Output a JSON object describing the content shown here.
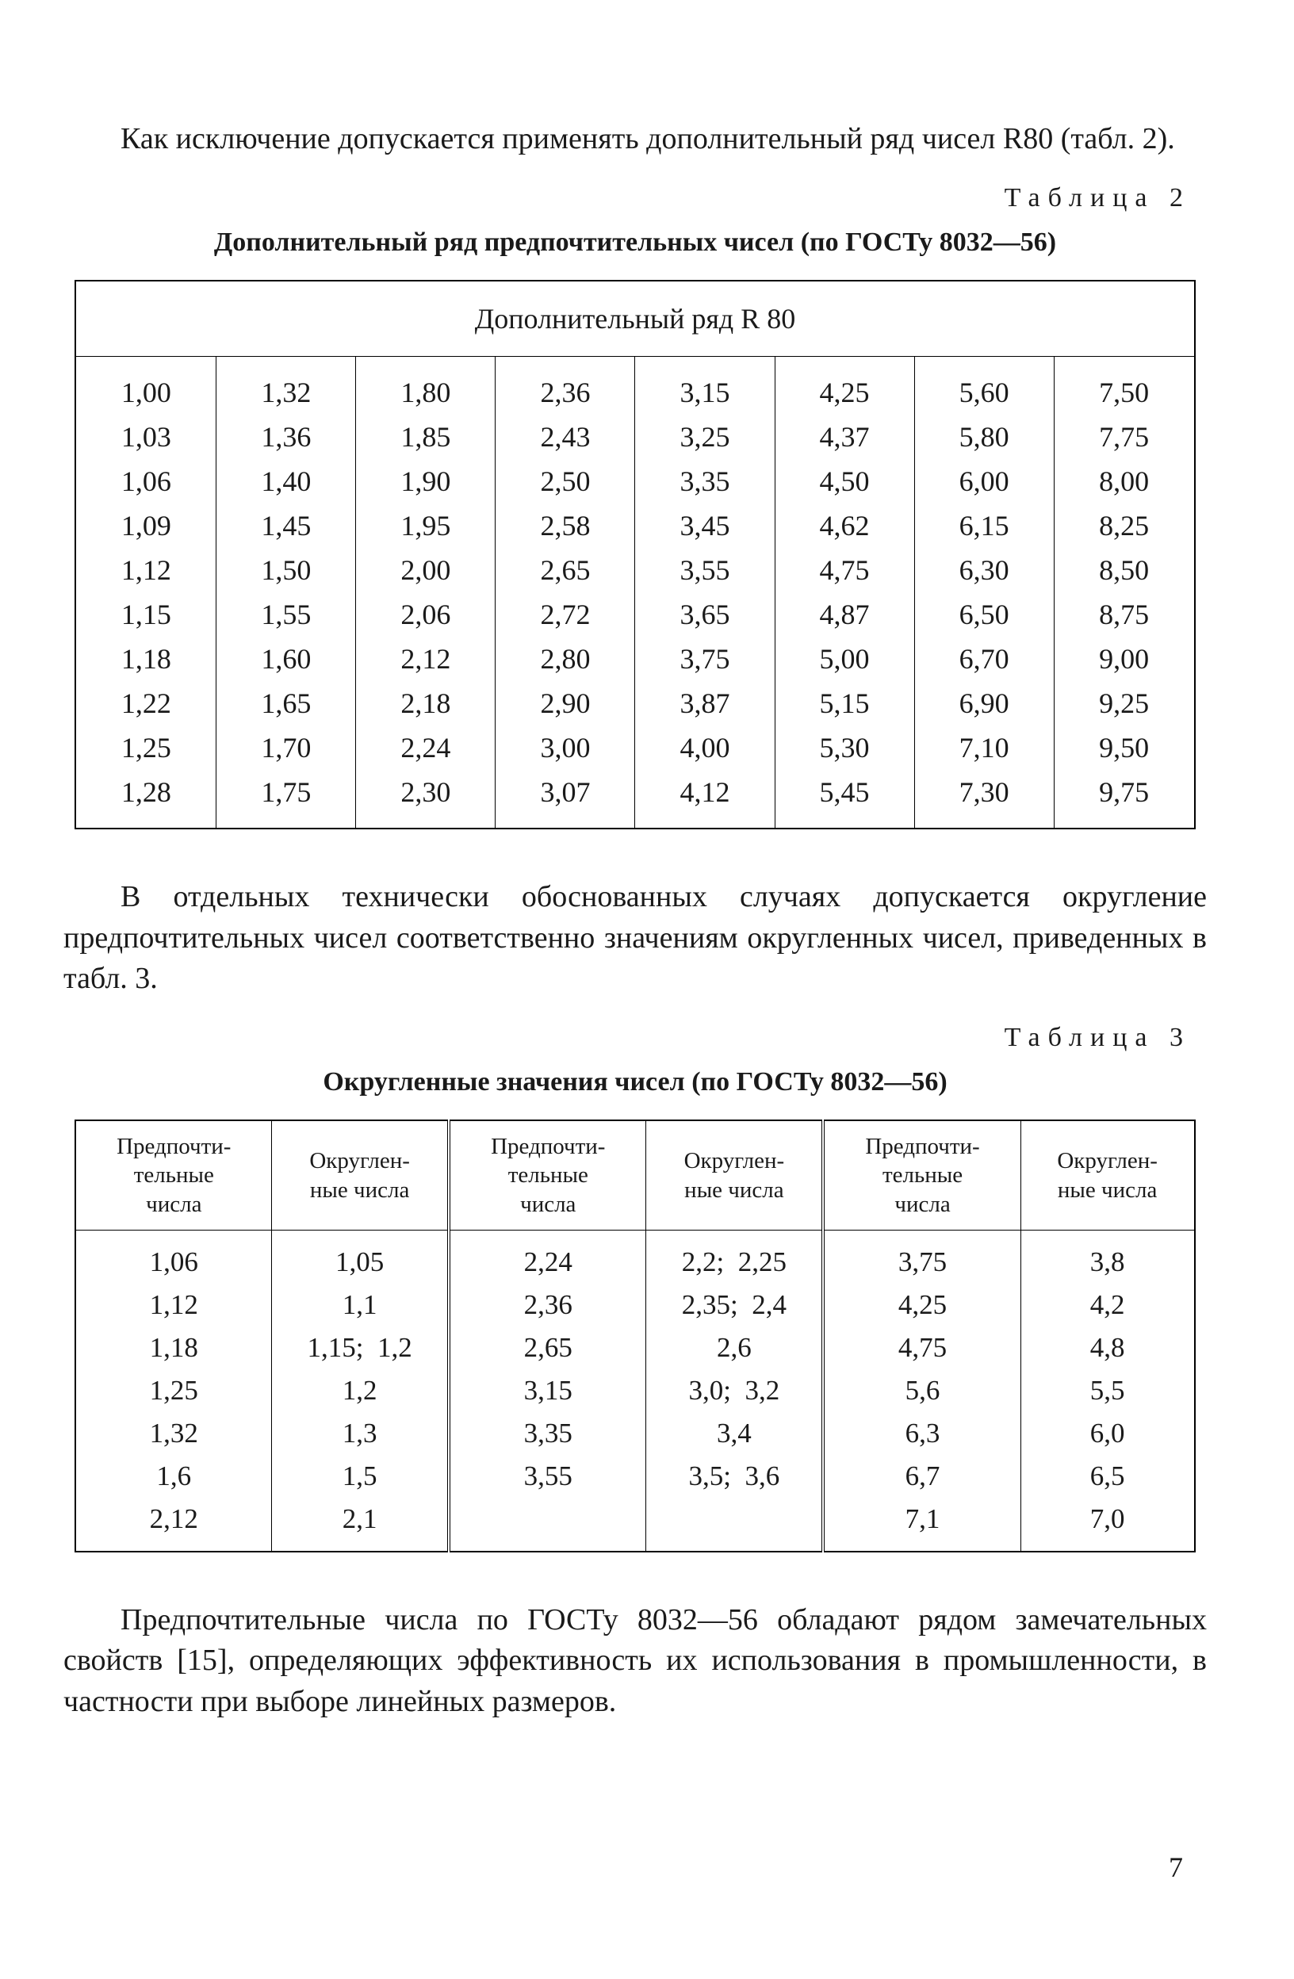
{
  "para1": "Как исключение допускается применять дополнительный ряд чисел R80 (табл. 2).",
  "table2": {
    "label": "Таблица 2",
    "caption": "Дополнительный ряд предпочтительных чисел (по ГОСТу 8032—56)",
    "header": "Дополнительный ряд R 80",
    "rows": [
      [
        "1,00",
        "1,32",
        "1,80",
        "2,36",
        "3,15",
        "4,25",
        "5,60",
        "7,50"
      ],
      [
        "1,03",
        "1,36",
        "1,85",
        "2,43",
        "3,25",
        "4,37",
        "5,80",
        "7,75"
      ],
      [
        "1,06",
        "1,40",
        "1,90",
        "2,50",
        "3,35",
        "4,50",
        "6,00",
        "8,00"
      ],
      [
        "1,09",
        "1,45",
        "1,95",
        "2,58",
        "3,45",
        "4,62",
        "6,15",
        "8,25"
      ],
      [
        "1,12",
        "1,50",
        "2,00",
        "2,65",
        "3,55",
        "4,75",
        "6,30",
        "8,50"
      ],
      [
        "1,15",
        "1,55",
        "2,06",
        "2,72",
        "3,65",
        "4,87",
        "6,50",
        "8,75"
      ],
      [
        "1,18",
        "1,60",
        "2,12",
        "2,80",
        "3,75",
        "5,00",
        "6,70",
        "9,00"
      ],
      [
        "1,22",
        "1,65",
        "2,18",
        "2,90",
        "3,87",
        "5,15",
        "6,90",
        "9,25"
      ],
      [
        "1,25",
        "1,70",
        "2,24",
        "3,00",
        "4,00",
        "5,30",
        "7,10",
        "9,50"
      ],
      [
        "1,28",
        "1,75",
        "2,30",
        "3,07",
        "4,12",
        "5,45",
        "7,30",
        "9,75"
      ]
    ]
  },
  "para2": "В отдельных технически обоснованных случаях допускается округление предпочтительных чисел соответственно значениям округленных чисел, приведенных в табл. 3.",
  "table3": {
    "label": "Таблица 3",
    "caption": "Округленные значения чисел (по ГОСТу 8032—56)",
    "headers": [
      "Предпочти-\nтельные\nчисла",
      "Округлен-\nные числа",
      "Предпочти-\nтельные\nчисла",
      "Округлен-\nные числа",
      "Предпочти-\nтельные\nчисла",
      "Округлен-\nные числа"
    ],
    "rows": [
      [
        "1,06",
        "1,05",
        "2,24",
        "2,2;  2,25",
        "3,75",
        "3,8"
      ],
      [
        "1,12",
        "1,1",
        "2,36",
        "2,35;  2,4",
        "4,25",
        "4,2"
      ],
      [
        "1,18",
        "1,15;  1,2",
        "2,65",
        "2,6",
        "4,75",
        "4,8"
      ],
      [
        "1,25",
        "1,2",
        "3,15",
        "3,0;  3,2",
        "5,6",
        "5,5"
      ],
      [
        "1,32",
        "1,3",
        "3,35",
        "3,4",
        "6,3",
        "6,0"
      ],
      [
        "1,6",
        "1,5",
        "3,55",
        "3,5;  3,6",
        "6,7",
        "6,5"
      ],
      [
        "2,12",
        "2,1",
        "",
        "",
        "7,1",
        "7,0"
      ]
    ]
  },
  "para3": "Предпочтительные числа по ГОСТу 8032—56 обладают рядом замечательных свойств [15], определяющих эффективность их использования в промышленности, в частности при выборе линейных размеров.",
  "page_number": "7"
}
